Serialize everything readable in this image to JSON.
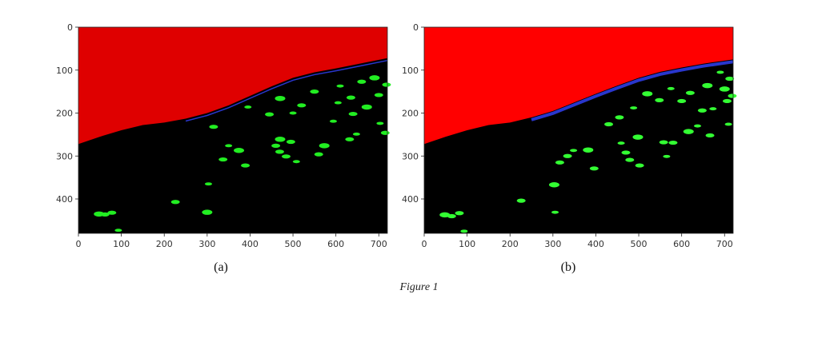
{
  "figure": {
    "caption": "Figure 1",
    "panels": [
      {
        "label": "(a)",
        "colors": {
          "sky": "#df0000",
          "ground": "#000000",
          "blobs": "#22ee22",
          "edge": "#3344ff"
        }
      },
      {
        "label": "(b)",
        "colors": {
          "sky": "#ff0000",
          "ground": "#000000",
          "blobs": "#33ff33",
          "edge": "#3344ff"
        }
      }
    ]
  },
  "chart_data": [
    {
      "type": "heatmap",
      "xlim": [
        0,
        720
      ],
      "ylim": [
        480,
        0
      ],
      "x_ticks": [
        "0",
        "100",
        "200",
        "300",
        "400",
        "500",
        "600",
        "700"
      ],
      "y_ticks": [
        "0",
        "100",
        "200",
        "300",
        "400"
      ],
      "boundary": [
        [
          0,
          272
        ],
        [
          50,
          255
        ],
        [
          100,
          240
        ],
        [
          150,
          228
        ],
        [
          200,
          222
        ],
        [
          250,
          213
        ],
        [
          300,
          200
        ],
        [
          350,
          182
        ],
        [
          400,
          160
        ],
        [
          450,
          138
        ],
        [
          500,
          118
        ],
        [
          550,
          105
        ],
        [
          600,
          96
        ],
        [
          650,
          86
        ],
        [
          720,
          72
        ]
      ],
      "blobs": [
        [
          48,
          435
        ],
        [
          62,
          436
        ],
        [
          78,
          432
        ],
        [
          93,
          473
        ],
        [
          226,
          407
        ],
        [
          300,
          431
        ],
        [
          303,
          365
        ],
        [
          315,
          232
        ],
        [
          337,
          308
        ],
        [
          350,
          276
        ],
        [
          374,
          287
        ],
        [
          389,
          322
        ],
        [
          395,
          186
        ],
        [
          460,
          276
        ],
        [
          469,
          290
        ],
        [
          470,
          261
        ],
        [
          484,
          301
        ],
        [
          495,
          267
        ],
        [
          508,
          313
        ],
        [
          560,
          296
        ],
        [
          573,
          276
        ],
        [
          594,
          219
        ],
        [
          632,
          261
        ],
        [
          640,
          202
        ],
        [
          648,
          249
        ],
        [
          672,
          186
        ],
        [
          700,
          158
        ],
        [
          703,
          224
        ],
        [
          715,
          246
        ],
        [
          718,
          134
        ],
        [
          470,
          166
        ],
        [
          520,
          182
        ],
        [
          550,
          150
        ],
        [
          610,
          137
        ],
        [
          660,
          127
        ],
        [
          690,
          118
        ],
        [
          605,
          176
        ],
        [
          635,
          164
        ],
        [
          445,
          203
        ],
        [
          500,
          200
        ]
      ]
    },
    {
      "type": "heatmap",
      "xlim": [
        0,
        720
      ],
      "ylim": [
        480,
        0
      ],
      "x_ticks": [
        "0",
        "100",
        "200",
        "300",
        "400",
        "500",
        "600",
        "700"
      ],
      "y_ticks": [
        "0",
        "100",
        "200",
        "300",
        "400"
      ],
      "boundary": [
        [
          0,
          272
        ],
        [
          50,
          255
        ],
        [
          100,
          240
        ],
        [
          150,
          228
        ],
        [
          200,
          222
        ],
        [
          250,
          210
        ],
        [
          300,
          195
        ],
        [
          350,
          175
        ],
        [
          400,
          155
        ],
        [
          450,
          136
        ],
        [
          500,
          118
        ],
        [
          550,
          104
        ],
        [
          600,
          94
        ],
        [
          650,
          85
        ],
        [
          720,
          75
        ]
      ],
      "blobs": [
        [
          48,
          437
        ],
        [
          64,
          440
        ],
        [
          82,
          433
        ],
        [
          93,
          475
        ],
        [
          226,
          404
        ],
        [
          303,
          367
        ],
        [
          305,
          431
        ],
        [
          316,
          315
        ],
        [
          334,
          300
        ],
        [
          348,
          287
        ],
        [
          382,
          286
        ],
        [
          396,
          329
        ],
        [
          459,
          270
        ],
        [
          470,
          292
        ],
        [
          479,
          309
        ],
        [
          498,
          256
        ],
        [
          502,
          322
        ],
        [
          558,
          268
        ],
        [
          565,
          301
        ],
        [
          580,
          269
        ],
        [
          616,
          243
        ],
        [
          637,
          230
        ],
        [
          648,
          194
        ],
        [
          666,
          252
        ],
        [
          673,
          190
        ],
        [
          700,
          144
        ],
        [
          706,
          172
        ],
        [
          709,
          226
        ],
        [
          718,
          160
        ],
        [
          712,
          120
        ],
        [
          660,
          136
        ],
        [
          620,
          153
        ],
        [
          600,
          172
        ],
        [
          575,
          143
        ],
        [
          548,
          170
        ],
        [
          520,
          155
        ],
        [
          488,
          188
        ],
        [
          455,
          210
        ],
        [
          430,
          226
        ],
        [
          690,
          105
        ]
      ]
    }
  ]
}
